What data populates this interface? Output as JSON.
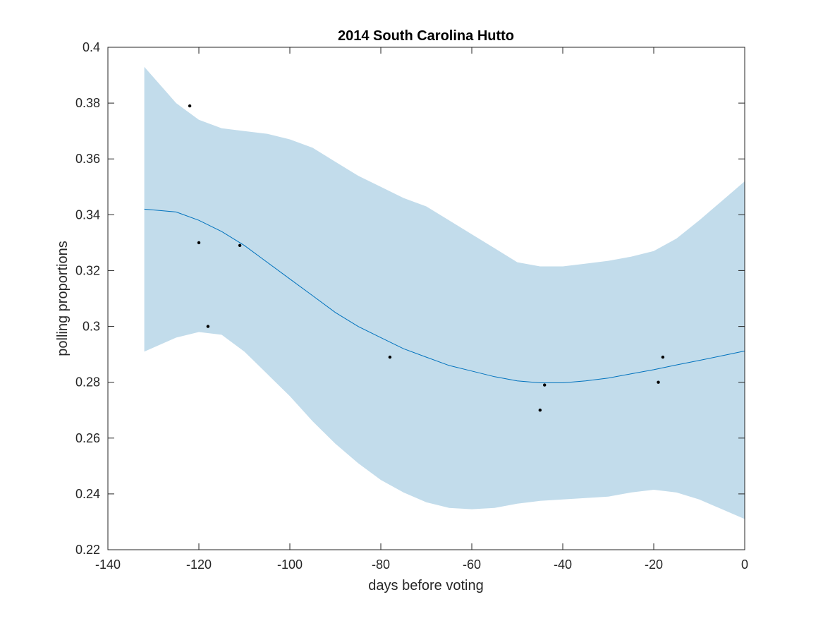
{
  "chart_data": {
    "type": "line",
    "title": "2014 South Carolina Hutto",
    "xlabel": "days before voting",
    "ylabel": "polling proportions",
    "xlim": [
      -140,
      0
    ],
    "ylim": [
      0.22,
      0.4
    ],
    "xticks": [
      -140,
      -120,
      -100,
      -80,
      -60,
      -40,
      -20,
      0
    ],
    "yticks": [
      0.22,
      0.24,
      0.26,
      0.28,
      0.3,
      0.32,
      0.34,
      0.36,
      0.38,
      0.4
    ],
    "xtick_labels": [
      "-140",
      "-120",
      "-100",
      "-80",
      "-60",
      "-40",
      "-20",
      "0"
    ],
    "ytick_labels": [
      "0.22",
      "0.24",
      "0.26",
      "0.28",
      "0.3",
      "0.32",
      "0.34",
      "0.36",
      "0.38",
      "0.4"
    ],
    "grid": false,
    "series": [
      {
        "type": "line",
        "color": "#0072BD",
        "x": [
          -132,
          -125,
          -120,
          -115,
          -110,
          -105,
          -100,
          -95,
          -90,
          -85,
          -80,
          -75,
          -70,
          -65,
          -60,
          -55,
          -50,
          -45,
          -40,
          -35,
          -30,
          -25,
          -20,
          -15,
          -10,
          -5,
          0
        ],
        "y": [
          0.342,
          0.341,
          0.338,
          0.334,
          0.329,
          0.323,
          0.317,
          0.311,
          0.305,
          0.3,
          0.296,
          0.292,
          0.289,
          0.286,
          0.284,
          0.282,
          0.2805,
          0.2798,
          0.2798,
          0.2805,
          0.2815,
          0.283,
          0.2845,
          0.2862,
          0.2878,
          0.2895,
          0.2912
        ]
      },
      {
        "type": "area",
        "color": "#C2DCEB",
        "x": [
          -132,
          -125,
          -120,
          -115,
          -110,
          -105,
          -100,
          -95,
          -90,
          -85,
          -80,
          -75,
          -70,
          -65,
          -60,
          -55,
          -50,
          -45,
          -40,
          -35,
          -30,
          -25,
          -20,
          -15,
          -10,
          -5,
          0
        ],
        "upper": [
          0.393,
          0.38,
          0.374,
          0.371,
          0.37,
          0.369,
          0.367,
          0.364,
          0.359,
          0.354,
          0.35,
          0.346,
          0.343,
          0.338,
          0.333,
          0.328,
          0.323,
          0.3215,
          0.3215,
          0.3225,
          0.3235,
          0.325,
          0.327,
          0.3315,
          0.338,
          0.345,
          0.352
        ],
        "lower": [
          0.291,
          0.296,
          0.298,
          0.297,
          0.291,
          0.283,
          0.275,
          0.266,
          0.258,
          0.251,
          0.245,
          0.2405,
          0.237,
          0.235,
          0.2345,
          0.235,
          0.2365,
          0.2375,
          0.238,
          0.2385,
          0.239,
          0.2405,
          0.2415,
          0.2405,
          0.238,
          0.2345,
          0.231
        ]
      },
      {
        "type": "scatter",
        "color": "#000000",
        "x": [
          -122,
          -120,
          -118,
          -111,
          -78,
          -45,
          -44,
          -19,
          -18
        ],
        "y": [
          0.379,
          0.33,
          0.3,
          0.329,
          0.289,
          0.27,
          0.279,
          0.28,
          0.289
        ]
      }
    ]
  }
}
